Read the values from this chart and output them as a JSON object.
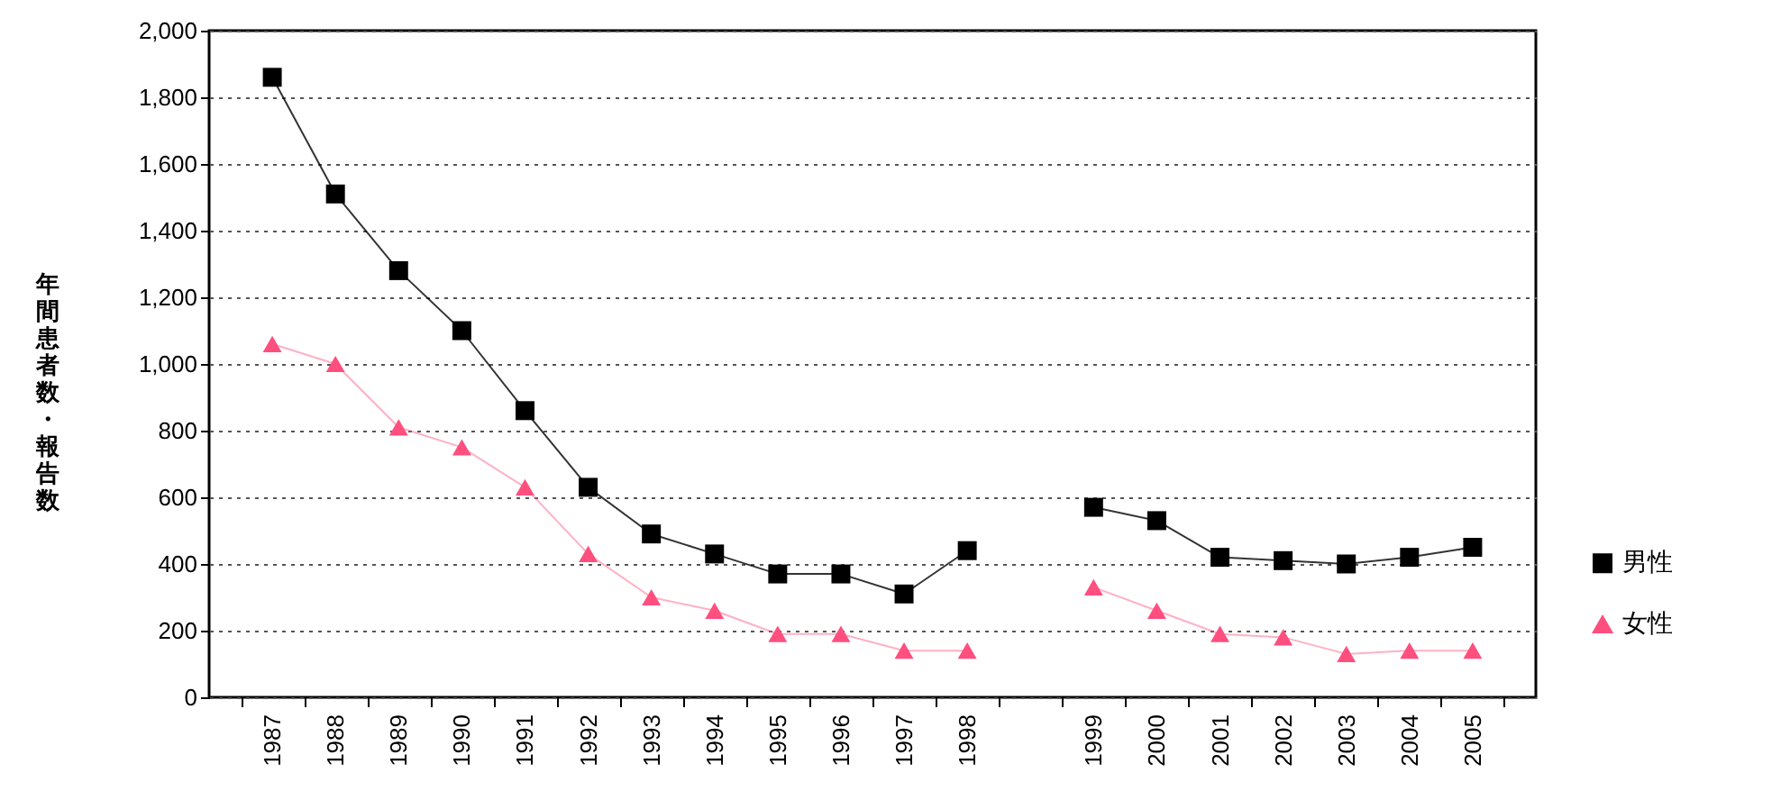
{
  "chart_data": {
    "type": "line",
    "ylabel": "年間患者数・報告数",
    "categories": [
      "1987",
      "1988",
      "1989",
      "1990",
      "1991",
      "1992",
      "1993",
      "1994",
      "1995",
      "1996",
      "1997",
      "1998",
      null,
      "1999",
      "2000",
      "2001",
      "2002",
      "2003",
      "2004",
      "2005"
    ],
    "series": [
      {
        "name": "男性",
        "color": "#000000",
        "marker": "square",
        "values": [
          1860,
          1510,
          1280,
          1100,
          860,
          630,
          490,
          430,
          370,
          370,
          310,
          440,
          null,
          570,
          530,
          420,
          410,
          400,
          420,
          450
        ]
      },
      {
        "name": "女性",
        "color": "#ff4f7f",
        "marker": "triangle",
        "values": [
          1060,
          1000,
          810,
          750,
          630,
          430,
          300,
          260,
          190,
          190,
          140,
          140,
          null,
          330,
          260,
          190,
          180,
          130,
          140,
          140
        ]
      }
    ],
    "ylim": [
      0,
      2000
    ],
    "yticks": [
      0,
      200,
      400,
      600,
      800,
      {
        "value": 1000,
        "label": "1,000"
      },
      {
        "value": 1200,
        "label": "1,200"
      },
      {
        "value": 1400,
        "label": "1,400"
      },
      {
        "value": 1600,
        "label": "1,600"
      },
      {
        "value": 1800,
        "label": "1,800"
      },
      {
        "value": 2000,
        "label": "2,000"
      }
    ],
    "grid": "y",
    "legend": "right",
    "line_style": "solid"
  }
}
